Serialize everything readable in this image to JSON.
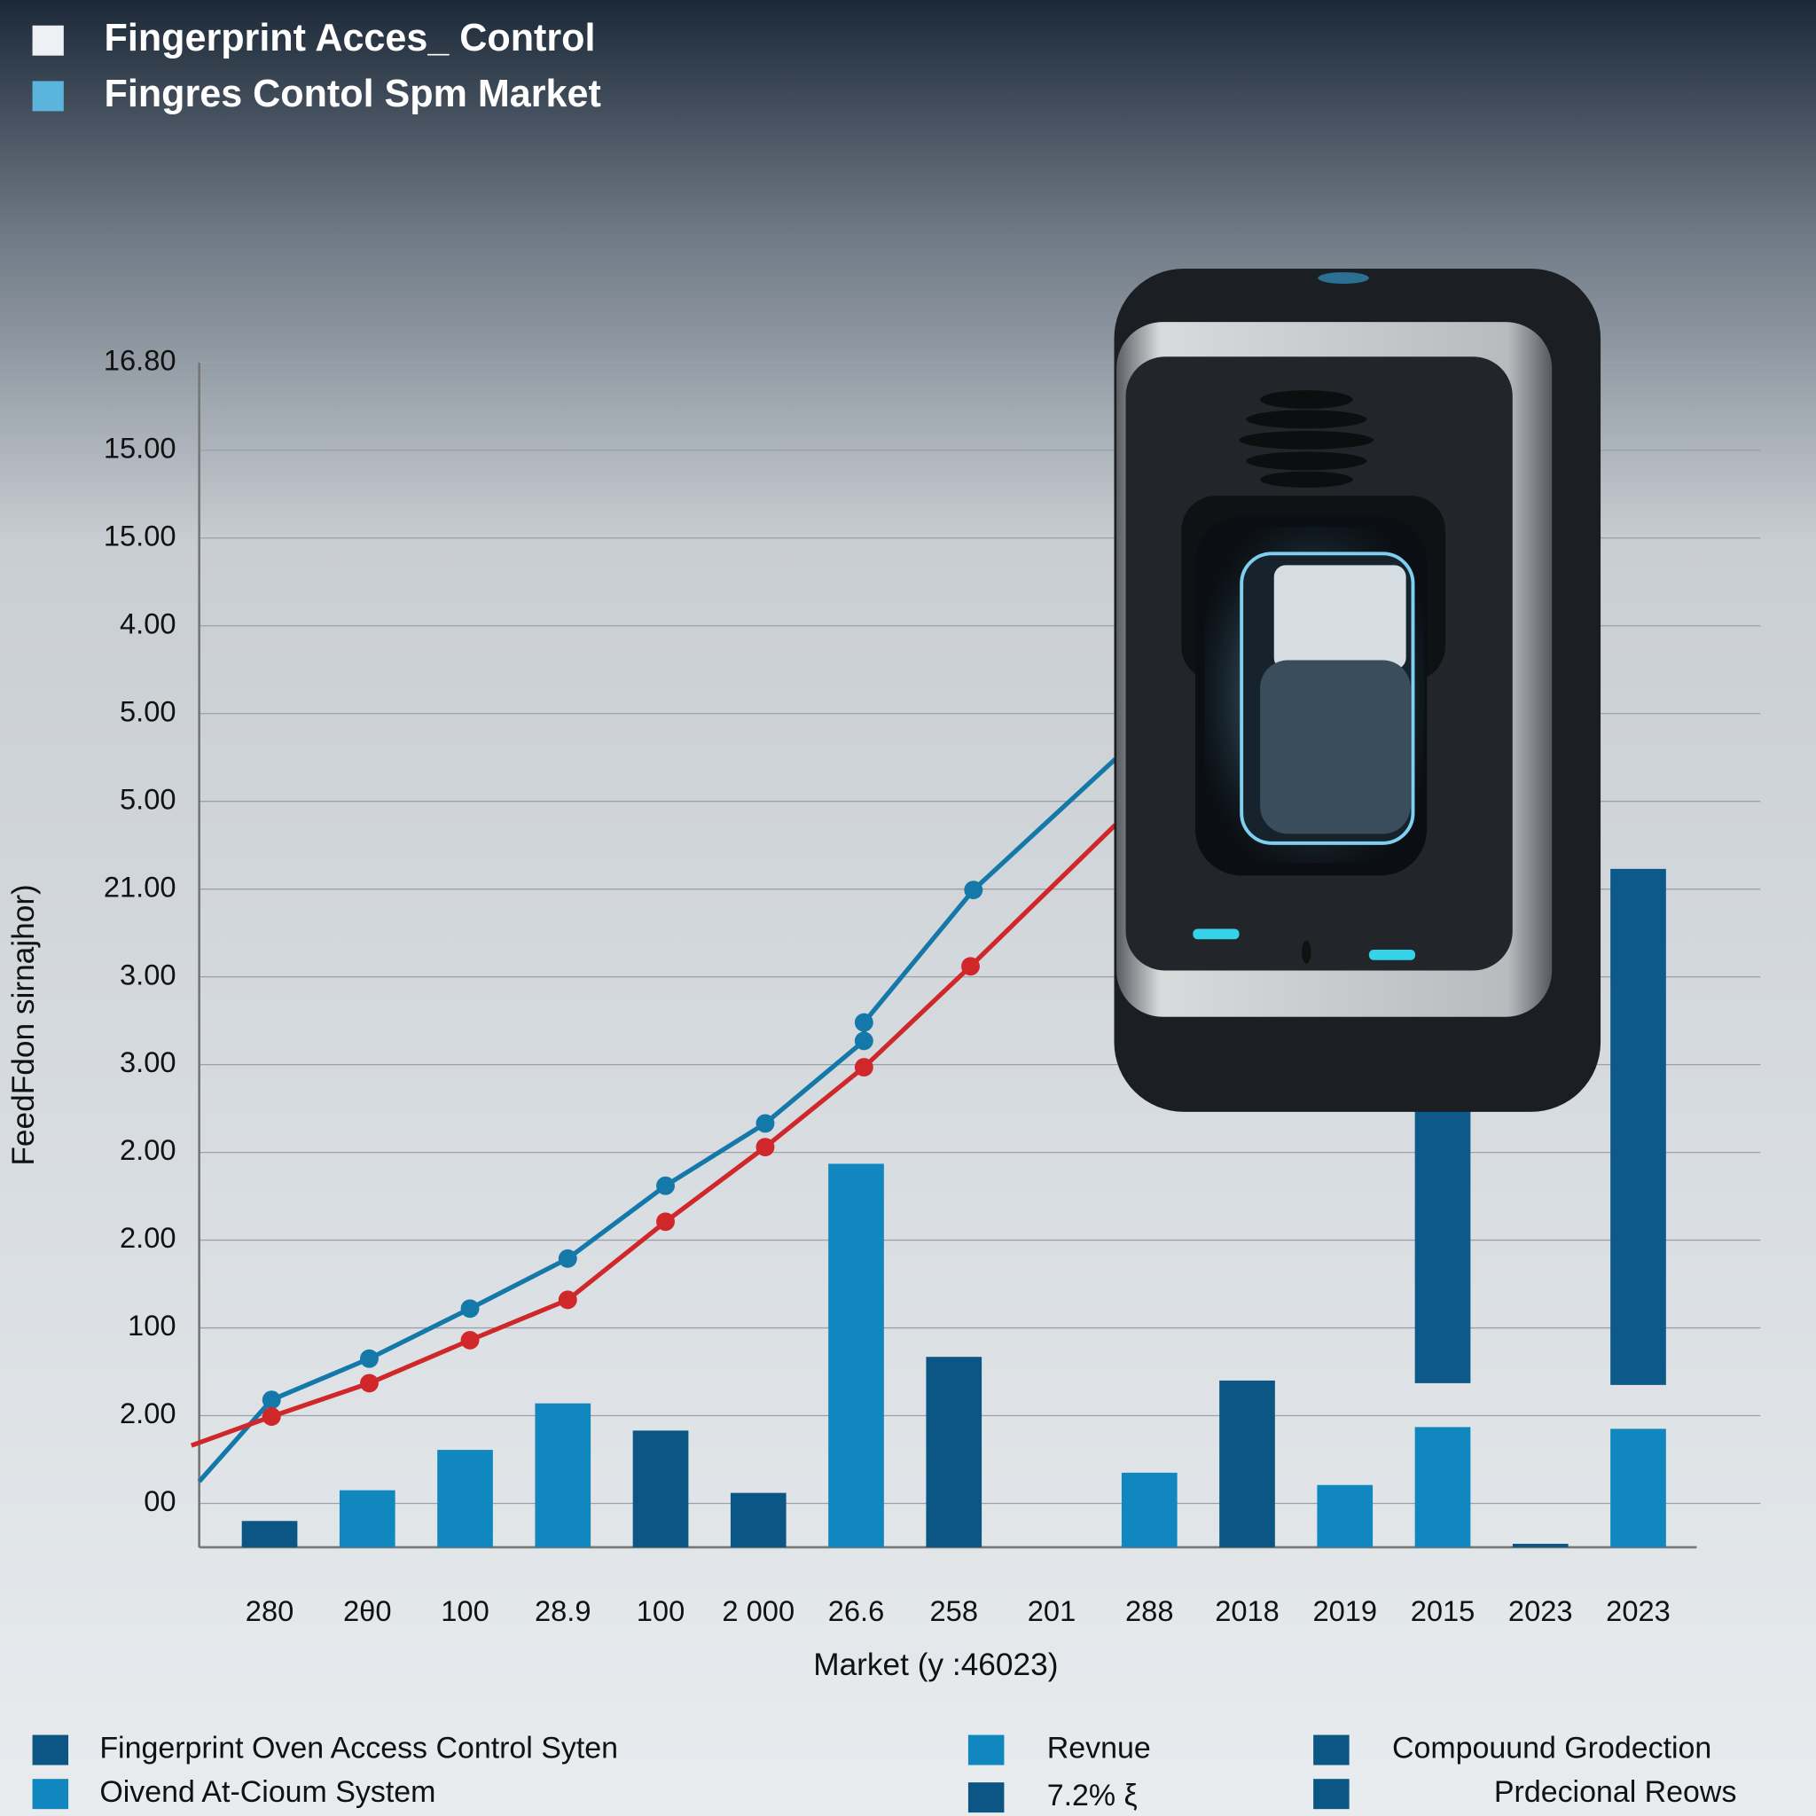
{
  "chart_data": {
    "type": "bar",
    "header_legend": [
      {
        "label": "Fingerprint Acces_ Control",
        "color": "#eef1f4"
      },
      {
        "label": "Fingres Contol Spm Market",
        "color": "#5ab4dc"
      }
    ],
    "y_label": "FeedFdon sirnajhor)",
    "x_label": "Market  (y :46023)",
    "categories": [
      "280",
      "2θ0",
      "100",
      "28.9",
      "100",
      "2 000",
      "26.6",
      "258",
      "201",
      "288",
      "2018",
      "2019",
      "2015",
      "2023",
      "2023"
    ],
    "xlim": [
      -0.72,
      15.25
    ],
    "ylim": [
      -0.5,
      13
    ],
    "yticks": [
      {
        "value": 13,
        "label": "16.80"
      },
      {
        "value": 12,
        "label": "15.00"
      },
      {
        "value": 11,
        "label": "15.00"
      },
      {
        "value": 10,
        "label": "4.00"
      },
      {
        "value": 9,
        "label": "5.00"
      },
      {
        "value": 8,
        "label": "5.00"
      },
      {
        "value": 7,
        "label": "21.00"
      },
      {
        "value": 6,
        "label": "3.00"
      },
      {
        "value": 5,
        "label": "3.00"
      },
      {
        "value": 4,
        "label": "2.00"
      },
      {
        "value": 3,
        "label": "2.00"
      },
      {
        "value": 2,
        "label": "100"
      },
      {
        "value": 1,
        "label": "2.00"
      },
      {
        "value": 0,
        "label": "00"
      }
    ],
    "grid": true,
    "bar_series": [
      {
        "values": [
          0.3,
          0.65,
          1.11,
          1.64,
          1.33,
          0.62,
          4.37,
          2.17,
          null,
          0.85,
          1.9,
          0.71,
          1.37,
          0.04,
          1.35
        ],
        "colors": [
          "#0b5685",
          "#1088bf",
          "#1088bf",
          "#1088bf",
          "#0b5685",
          "#0b5685",
          "#1088bf",
          "#0b5685",
          null,
          "#1088bf",
          "#0b5685",
          "#1088bf",
          "#1088bf",
          "#0b5685",
          "#1088bf"
        ]
      },
      {
        "values": [
          null,
          null,
          null,
          null,
          null,
          null,
          null,
          null,
          null,
          null,
          null,
          null,
          3.15,
          null,
          5.88
        ],
        "color": "#0d5a8a"
      }
    ],
    "line_series": [
      {
        "color": "#1478a8",
        "x": [
          -0.72,
          0.02,
          1.02,
          2.05,
          3.05,
          4.05,
          5.07,
          6.08,
          6.08,
          7.2,
          8.65
        ],
        "values": [
          0.25,
          1.18,
          1.65,
          2.22,
          2.79,
          3.62,
          4.33,
          5.27,
          5.48,
          6.99,
          8.48
        ]
      },
      {
        "color": "#d0282a",
        "x": [
          -0.8,
          0.02,
          1.02,
          2.05,
          3.05,
          4.05,
          5.07,
          6.08,
          7.17,
          8.65
        ],
        "values": [
          0.66,
          0.99,
          1.37,
          1.86,
          2.32,
          3.21,
          4.06,
          4.97,
          6.12,
          7.73
        ]
      }
    ],
    "legend_entries": [
      {
        "label": "Fingerprint Oven Access Control Syten",
        "color": "#0b5685"
      },
      {
        "label": "Oivend At-Cioum System",
        "color": "#1088bf"
      },
      {
        "label": "Revnue",
        "color": "#1088bf"
      },
      {
        "label": "7.2% ξ",
        "color": "#0b5685"
      },
      {
        "label": "Compouund Grodection",
        "color": "#0b5685"
      },
      {
        "label": "Prdecional Reows",
        "color": "#0b5685"
      }
    ]
  }
}
